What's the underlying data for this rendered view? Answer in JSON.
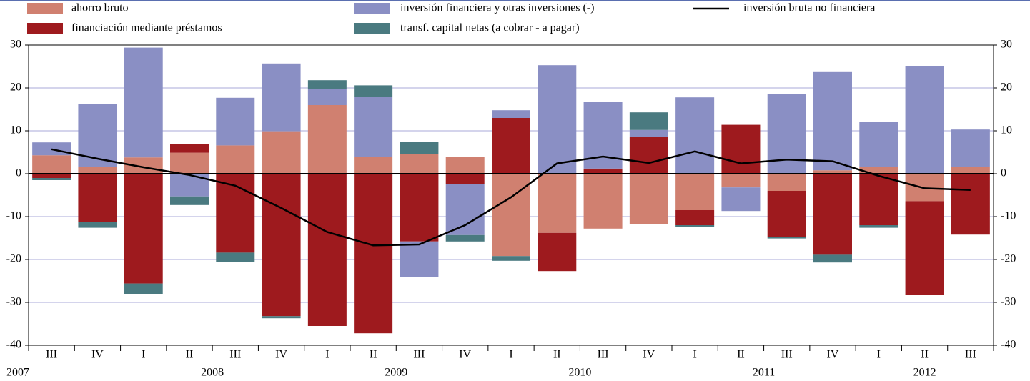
{
  "chart_data": {
    "type": "bar",
    "stacked": true,
    "categories": [
      "III",
      "IV",
      "I",
      "II",
      "III",
      "IV",
      "I",
      "II",
      "III",
      "IV",
      "I",
      "II",
      "III",
      "IV",
      "I",
      "II",
      "III",
      "IV",
      "I",
      "II",
      "III"
    ],
    "year_groups": [
      {
        "label": "2007",
        "quarters": 2
      },
      {
        "label": "2008",
        "quarters": 4
      },
      {
        "label": "2009",
        "quarters": 4
      },
      {
        "label": "2010",
        "quarters": 4
      },
      {
        "label": "2011",
        "quarters": 4
      },
      {
        "label": "2012",
        "quarters": 3
      }
    ],
    "series": [
      {
        "name": "ahorro bruto",
        "type": "bar",
        "color": "#d08070",
        "values": [
          4.3,
          1.5,
          3.8,
          4.9,
          6.6,
          9.9,
          16,
          3.9,
          4.5,
          3.9,
          -19.2,
          -13.8,
          -12.8,
          -11.7,
          -8.5,
          -3.2,
          -4.0,
          0.8,
          1.5,
          -6.4,
          1.5
        ]
      },
      {
        "name": "financiación mediante préstamos",
        "type": "bar",
        "color": "#9e1a1e",
        "values": [
          -1.0,
          -11.3,
          -25.6,
          2.1,
          -18.4,
          -33.2,
          -35.5,
          -37.2,
          -15.8,
          -2.5,
          13.0,
          -8.9,
          1.2,
          8.5,
          -3.5,
          11.4,
          -10.8,
          -18.9,
          -12.0,
          -21.9,
          -14.2
        ]
      },
      {
        "name": "inversión financiera y otras inversiones (-)",
        "type": "bar",
        "color": "#8a8fc4",
        "values": [
          3.0,
          14.7,
          25.6,
          -5.3,
          11.1,
          15.8,
          3.8,
          14.1,
          -8.2,
          -11.8,
          1.8,
          25.3,
          15.6,
          1.7,
          17.8,
          -5.5,
          18.6,
          22.9,
          10.6,
          25.1,
          8.8
        ]
      },
      {
        "name": "transf. capital netas (a cobrar - a pagar)",
        "type": "bar",
        "color": "#4a7a80",
        "values": [
          -0.5,
          -1.3,
          -2.4,
          -2.0,
          -2.1,
          -0.5,
          2.0,
          2.6,
          3.0,
          -1.5,
          -1.1,
          0,
          0,
          4.1,
          -0.5,
          0,
          -0.3,
          -1.8,
          -0.6,
          0,
          0
        ]
      },
      {
        "name": "inversión bruta no financiera",
        "type": "line",
        "color": "#000000",
        "values": [
          5.7,
          3.5,
          1.5,
          -0.3,
          -2.8,
          -8.0,
          -13.6,
          -16.7,
          -16.5,
          -12.0,
          -5.5,
          2.4,
          4.0,
          2.5,
          5.2,
          2.4,
          3.3,
          2.9,
          -0.5,
          -3.4,
          -3.8
        ]
      }
    ],
    "ylim": [
      -40,
      30
    ],
    "yticks": [
      -40,
      -30,
      -20,
      -10,
      0,
      10,
      20,
      30
    ],
    "y2lim": [
      -40,
      30
    ],
    "y2ticks": [
      -40,
      -30,
      -20,
      -10,
      0,
      10,
      20,
      30
    ],
    "grid": true
  }
}
